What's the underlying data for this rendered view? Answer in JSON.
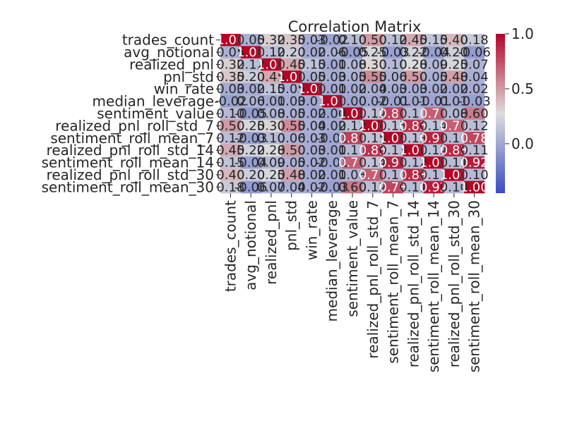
{
  "chart_data": {
    "type": "heatmap",
    "title": "Correlation Matrix",
    "xlabel": "",
    "ylabel": "",
    "colormap": "coolwarm",
    "color_low": "#3b4cc0",
    "color_mid": "#dddddd",
    "color_high": "#b40426",
    "vmin": -0.45,
    "vmax": 1.0,
    "annotated": true,
    "grid": false,
    "legend": "colorbar-right",
    "colorbar_ticks": [
      "1.0",
      "0.5",
      "0.0"
    ],
    "colorbar_tick_values": [
      1.0,
      0.5,
      0.0
    ],
    "categories": [
      "trades_count",
      "avg_notional",
      "realized_pnl",
      "pnl_std",
      "win_rate",
      "median_leverage",
      "sentiment_value",
      "realized_pnl_roll_std_7",
      "sentiment_roll_mean_7",
      "realized_pnl_roll_std_14",
      "sentiment_roll_mean_14",
      "realized_pnl_roll_std_30",
      "sentiment_roll_mean_30"
    ],
    "y_categories": [
      "trades_count",
      "avg_notional",
      "realized_pnl",
      "pnl_std",
      "win_rate",
      "median_leverage",
      "sentiment_value",
      "realized_pnl_roll_std_7",
      "sentiment_roll_mean_7",
      "realized_pnl_roll_std_14",
      "sentiment_roll_mean_14",
      "realized_pnl_roll_std_30",
      "sentiment_roll_mean_30"
    ],
    "values": [
      [
        1.0,
        0.05,
        0.32,
        0.35,
        0.03,
        -0.02,
        0.1,
        0.5,
        0.12,
        0.45,
        0.15,
        0.4,
        0.18
      ],
      [
        0.05,
        1.0,
        0.12,
        0.2,
        0.02,
        0.06,
        -0.05,
        0.25,
        -0.03,
        0.22,
        -0.04,
        0.2,
        -0.06
      ],
      [
        0.32,
        0.12,
        1.0,
        0.45,
        0.15,
        0.01,
        0.08,
        0.3,
        0.1,
        0.28,
        0.09,
        0.25,
        0.07
      ],
      [
        0.35,
        0.2,
        0.45,
        1.0,
        0.05,
        0.03,
        0.05,
        0.55,
        0.06,
        0.5,
        0.05,
        0.48,
        0.04
      ],
      [
        0.03,
        0.02,
        0.15,
        0.05,
        1.0,
        0.01,
        0.02,
        0.04,
        0.03,
        0.03,
        0.02,
        0.02,
        0.02
      ],
      [
        -0.02,
        0.06,
        0.01,
        0.03,
        0.01,
        1.0,
        0.0,
        0.02,
        -0.01,
        0.01,
        -0.01,
        0.01,
        -0.03
      ],
      [
        0.1,
        -0.05,
        0.08,
        0.05,
        0.02,
        0.0,
        1.0,
        0.12,
        0.8,
        0.1,
        0.7,
        0.08,
        0.6
      ],
      [
        0.5,
        0.25,
        0.3,
        0.55,
        0.04,
        0.02,
        0.12,
        1.0,
        0.15,
        0.85,
        0.14,
        0.7,
        0.12
      ],
      [
        0.12,
        -0.03,
        0.1,
        0.06,
        0.03,
        -0.01,
        0.8,
        0.15,
        1.0,
        0.13,
        0.9,
        0.1,
        0.78
      ],
      [
        0.45,
        0.22,
        0.28,
        0.5,
        0.03,
        0.01,
        0.1,
        0.85,
        0.13,
        1.0,
        0.12,
        0.88,
        0.11
      ],
      [
        0.15,
        -0.04,
        0.09,
        0.05,
        0.02,
        -0.01,
        0.7,
        0.14,
        0.9,
        0.12,
        1.0,
        0.11,
        0.92
      ],
      [
        0.4,
        0.2,
        0.25,
        0.48,
        0.02,
        0.01,
        0.08,
        0.7,
        0.1,
        0.88,
        0.11,
        1.0,
        0.1
      ],
      [
        0.18,
        -0.06,
        0.07,
        0.04,
        0.02,
        -0.03,
        0.6,
        0.12,
        0.78,
        0.11,
        0.92,
        0.1,
        1.0
      ]
    ]
  }
}
